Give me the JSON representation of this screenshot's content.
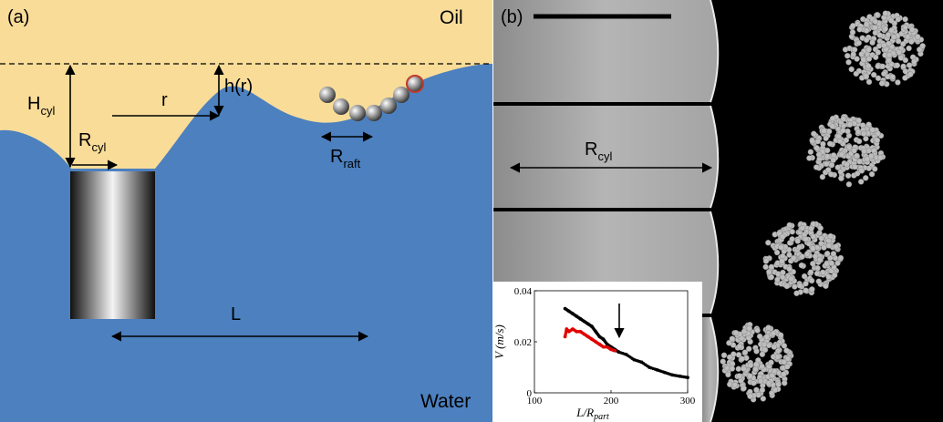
{
  "panel_a": {
    "label": "(a)",
    "oil_label": "Oil",
    "water_label": "Water",
    "h_cyl_main": "H",
    "h_cyl_sub": "cyl",
    "r_cyl_main": "R",
    "r_cyl_sub": "cyl",
    "r_label": "r",
    "h_of_r_label": "h(r)",
    "r_raft_main": "R",
    "r_raft_sub": "raft",
    "L_label": "L",
    "colors": {
      "oil": "#f8dc98",
      "water": "#4c80bf",
      "raft_highlight": "#c0392b"
    }
  },
  "panel_b": {
    "label": "(b)",
    "r_cyl_main": "R",
    "r_cyl_sub": "cyl"
  },
  "chart_data": {
    "type": "scatter",
    "xlabel_main": "L/R",
    "xlabel_sub": "part",
    "ylabel": "V (m/s)",
    "xlim": [
      100,
      300
    ],
    "ylim": [
      0,
      0.04
    ],
    "xticks": [
      100,
      200,
      300
    ],
    "yticks": [
      0,
      0.02,
      0.04
    ],
    "ytick_labels": [
      "0",
      "0.02",
      "0.04"
    ],
    "annotation": "arrow at x=205",
    "series": [
      {
        "color": "#000000",
        "points": [
          [
            140,
            0.033
          ],
          [
            145,
            0.032
          ],
          [
            150,
            0.031
          ],
          [
            155,
            0.03
          ],
          [
            160,
            0.029
          ],
          [
            165,
            0.028
          ],
          [
            170,
            0.027
          ],
          [
            175,
            0.026
          ],
          [
            180,
            0.024
          ],
          [
            185,
            0.022
          ],
          [
            190,
            0.021
          ],
          [
            195,
            0.019
          ],
          [
            200,
            0.018
          ],
          [
            205,
            0.017
          ],
          [
            210,
            0.016
          ],
          [
            220,
            0.015
          ],
          [
            230,
            0.013
          ],
          [
            240,
            0.012
          ],
          [
            250,
            0.01
          ],
          [
            260,
            0.009
          ],
          [
            270,
            0.008
          ],
          [
            280,
            0.007
          ],
          [
            290,
            0.0065
          ],
          [
            300,
            0.006
          ]
        ]
      },
      {
        "color": "#e00000",
        "points": [
          [
            140,
            0.022
          ],
          [
            142,
            0.025
          ],
          [
            145,
            0.024
          ],
          [
            150,
            0.025
          ],
          [
            155,
            0.024
          ],
          [
            160,
            0.024
          ],
          [
            165,
            0.023
          ],
          [
            170,
            0.022
          ],
          [
            175,
            0.021
          ],
          [
            180,
            0.02
          ],
          [
            185,
            0.019
          ],
          [
            190,
            0.018
          ],
          [
            195,
            0.018
          ],
          [
            200,
            0.017
          ],
          [
            205,
            0.0165
          ]
        ]
      }
    ]
  }
}
